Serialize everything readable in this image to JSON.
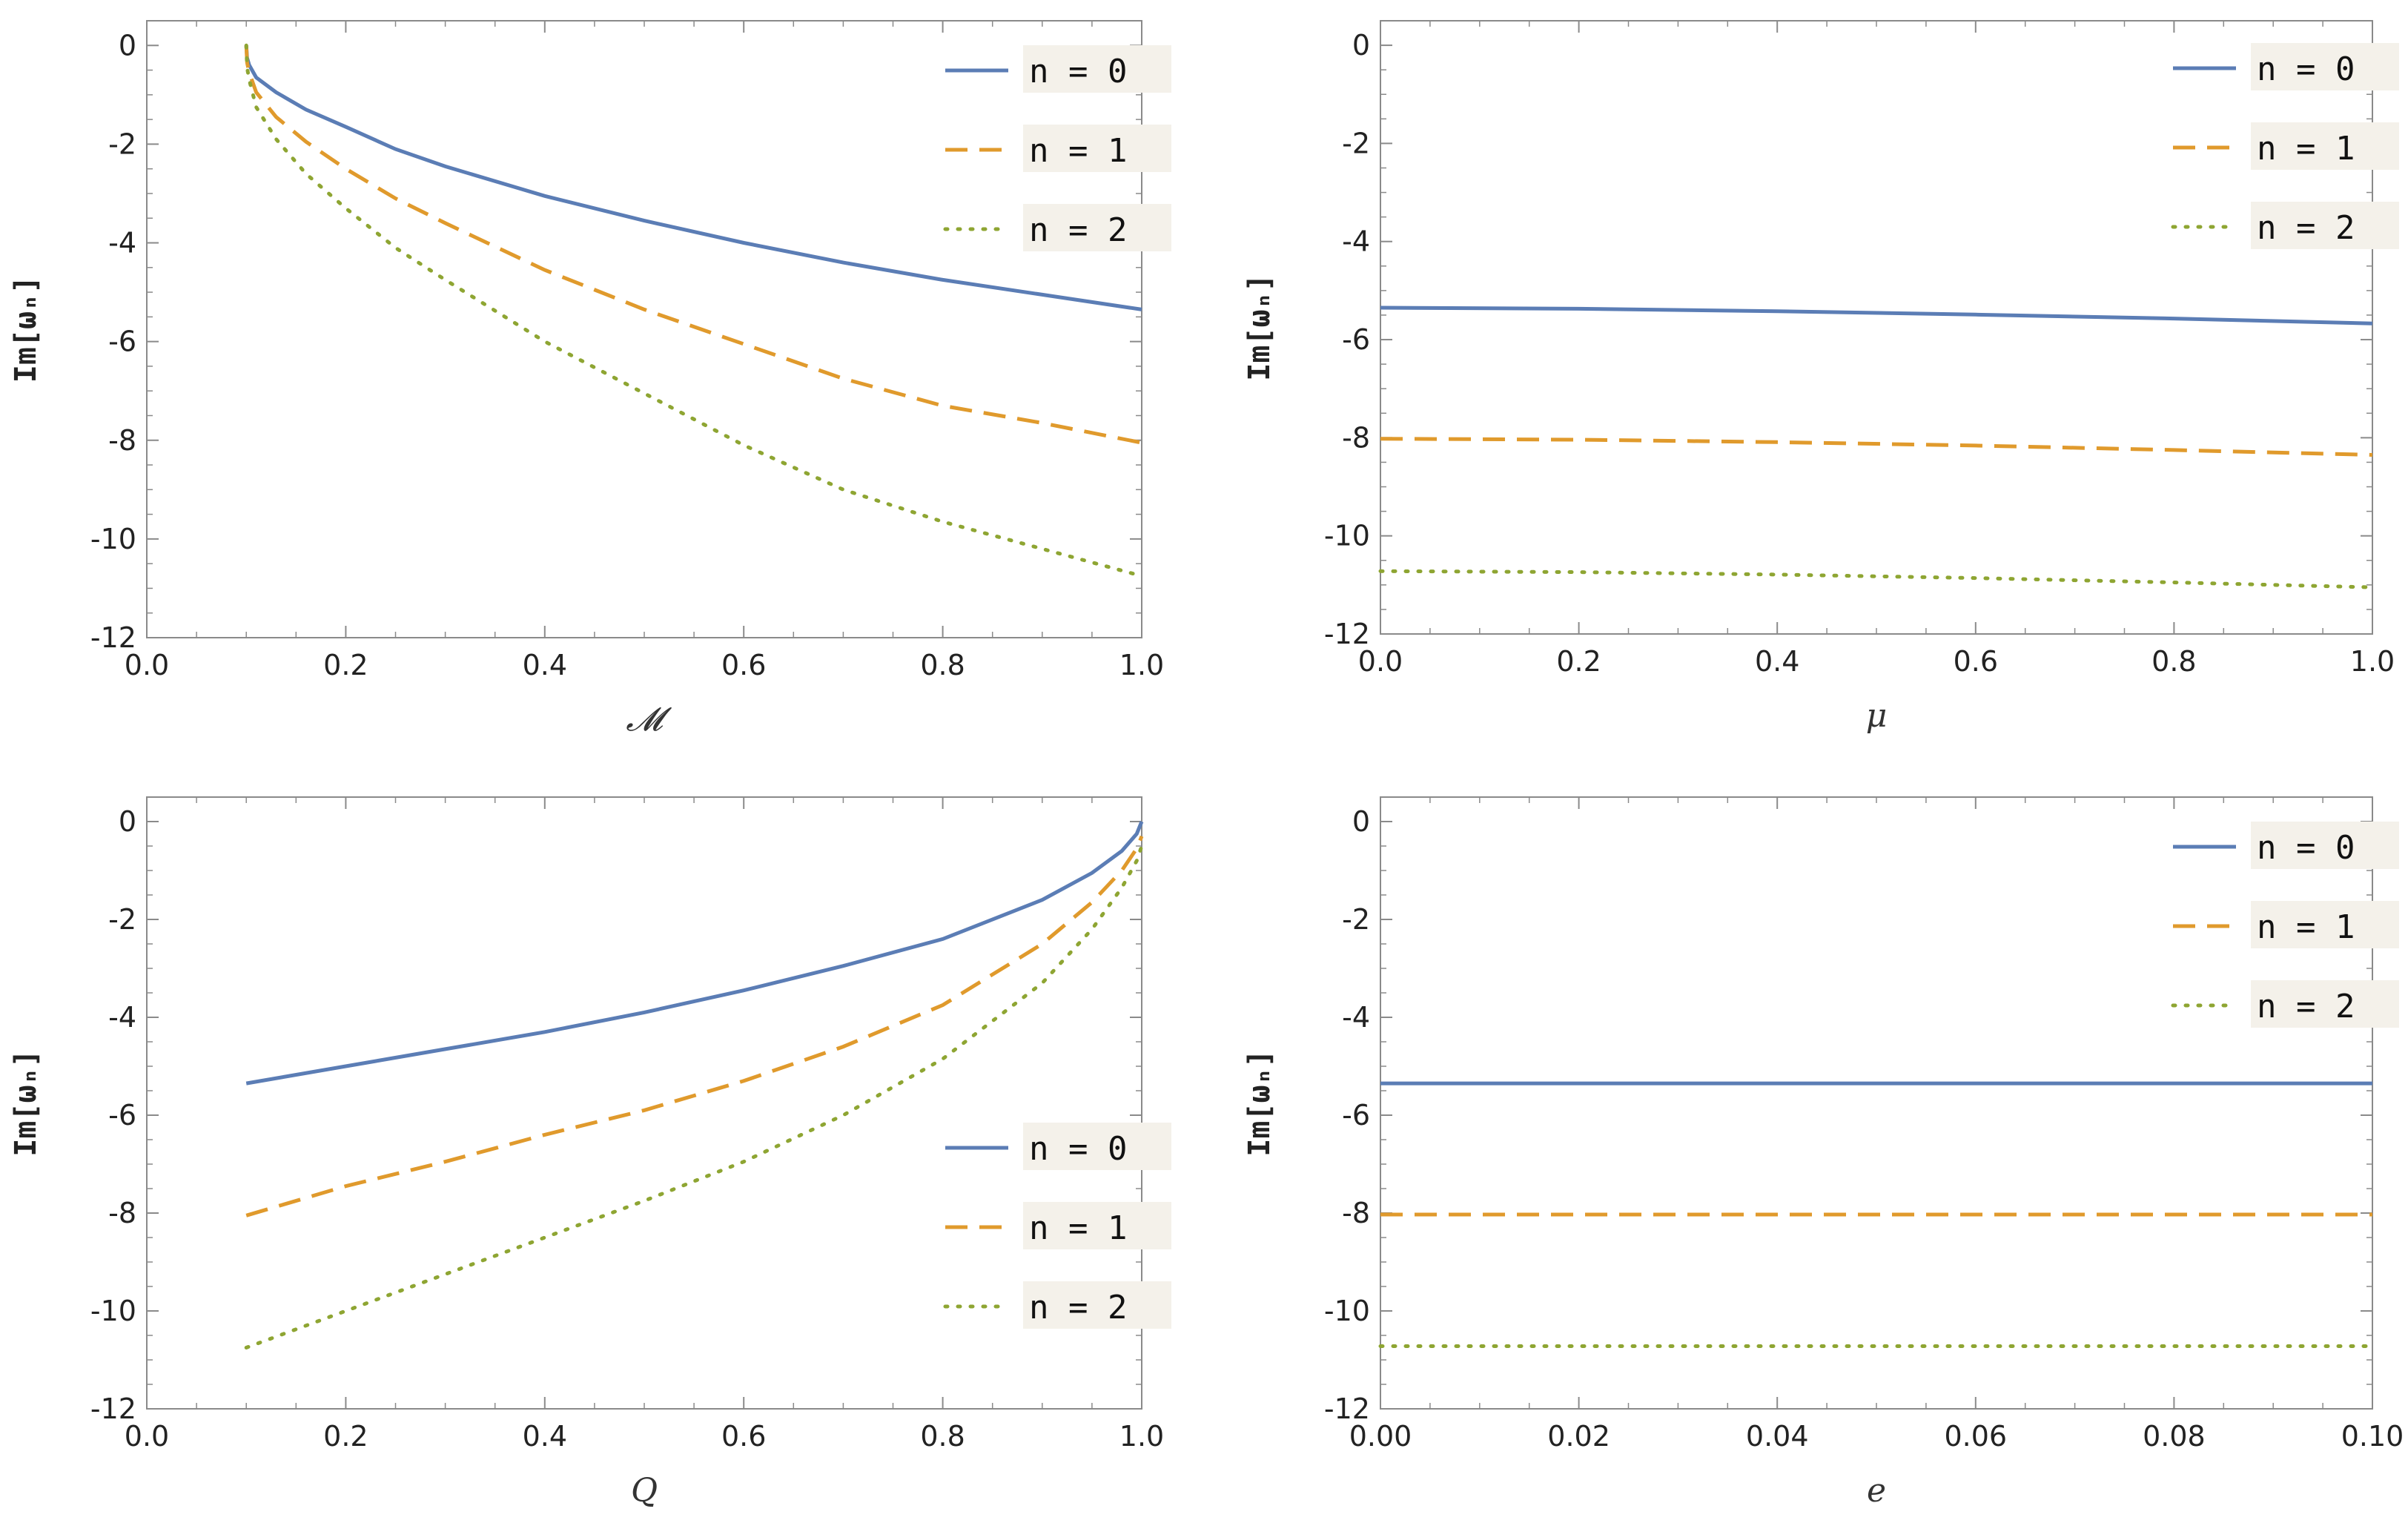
{
  "figure": {
    "colors": {
      "n0": "#5b7db5",
      "n1": "#e09a2c",
      "n2": "#8ea532",
      "frame": "#8a8a8a"
    }
  },
  "chart_data": [
    {
      "type": "line",
      "xlabel": "𝓜",
      "ylabel": "Im[ωₙ]",
      "xlim": [
        0.0,
        1.0
      ],
      "ylim": [
        -12,
        0.5
      ],
      "xticks": [
        "0.0",
        "0.2",
        "0.4",
        "0.6",
        "0.8",
        "1.0"
      ],
      "yticks": [
        "0",
        "-2",
        "-4",
        "-6",
        "-8",
        "-10",
        "-12"
      ],
      "legend_position": "top-right",
      "series": [
        {
          "name": "n = 0",
          "style": "solid",
          "x": [
            0.1,
            0.1008,
            0.103,
            0.11,
            0.13,
            0.16,
            0.2,
            0.25,
            0.3,
            0.4,
            0.5,
            0.6,
            0.7,
            0.8,
            0.9,
            1.0
          ],
          "y": [
            0.0,
            -0.25,
            -0.4,
            -0.65,
            -0.95,
            -1.3,
            -1.65,
            -2.1,
            -2.45,
            -3.05,
            -3.55,
            -4.0,
            -4.4,
            -4.75,
            -5.05,
            -5.35
          ]
        },
        {
          "name": "n = 1",
          "style": "dashed",
          "x": [
            0.1,
            0.1008,
            0.103,
            0.11,
            0.13,
            0.16,
            0.2,
            0.25,
            0.3,
            0.4,
            0.5,
            0.6,
            0.7,
            0.8,
            0.9,
            1.0
          ],
          "y": [
            0.0,
            -0.35,
            -0.55,
            -0.95,
            -1.45,
            -1.95,
            -2.5,
            -3.1,
            -3.6,
            -4.55,
            -5.35,
            -6.05,
            -6.75,
            -7.3,
            -7.65,
            -8.05
          ]
        },
        {
          "name": "n = 2",
          "style": "dotted",
          "x": [
            0.1,
            0.1008,
            0.103,
            0.11,
            0.13,
            0.16,
            0.2,
            0.25,
            0.3,
            0.4,
            0.5,
            0.6,
            0.7,
            0.8,
            0.9,
            1.0
          ],
          "y": [
            0.0,
            -0.45,
            -0.7,
            -1.25,
            -1.9,
            -2.6,
            -3.3,
            -4.1,
            -4.75,
            -6.0,
            -7.05,
            -8.1,
            -9.0,
            -9.65,
            -10.2,
            -10.75
          ]
        }
      ]
    },
    {
      "type": "line",
      "xlabel": "μ",
      "ylabel": "Im[ωₙ]",
      "xlim": [
        0.0,
        1.0
      ],
      "ylim": [
        -12,
        0.5
      ],
      "xticks": [
        "0.0",
        "0.2",
        "0.4",
        "0.6",
        "0.8",
        "1.0"
      ],
      "yticks": [
        "0",
        "-2",
        "-4",
        "-6",
        "-8",
        "-10",
        "-12"
      ],
      "legend_position": "top-right",
      "series": [
        {
          "name": "n = 0",
          "style": "solid",
          "x": [
            0.0,
            0.2,
            0.4,
            0.6,
            0.8,
            1.0
          ],
          "y": [
            -5.35,
            -5.37,
            -5.42,
            -5.49,
            -5.57,
            -5.67
          ]
        },
        {
          "name": "n = 1",
          "style": "dashed",
          "x": [
            0.0,
            0.2,
            0.4,
            0.6,
            0.8,
            1.0
          ],
          "y": [
            -8.02,
            -8.04,
            -8.09,
            -8.16,
            -8.25,
            -8.35
          ]
        },
        {
          "name": "n = 2",
          "style": "dotted",
          "x": [
            0.0,
            0.2,
            0.4,
            0.6,
            0.8,
            1.0
          ],
          "y": [
            -10.72,
            -10.74,
            -10.79,
            -10.86,
            -10.95,
            -11.05
          ]
        }
      ]
    },
    {
      "type": "line",
      "xlabel": "Q",
      "ylabel": "Im[ωₙ]",
      "xlim": [
        0.0,
        1.0
      ],
      "ylim": [
        -12,
        0.5
      ],
      "xticks": [
        "0.0",
        "0.2",
        "0.4",
        "0.6",
        "0.8",
        "1.0"
      ],
      "yticks": [
        "0",
        "-2",
        "-4",
        "-6",
        "-8",
        "-10",
        "-12"
      ],
      "legend_position": "center-right",
      "series": [
        {
          "name": "n = 0",
          "style": "solid",
          "x": [
            0.1,
            0.2,
            0.3,
            0.4,
            0.5,
            0.6,
            0.7,
            0.8,
            0.9,
            0.95,
            0.98,
            0.995,
            1.0
          ],
          "y": [
            -5.35,
            -5.0,
            -4.65,
            -4.3,
            -3.9,
            -3.45,
            -2.95,
            -2.4,
            -1.6,
            -1.05,
            -0.6,
            -0.25,
            0.0
          ]
        },
        {
          "name": "n = 1",
          "style": "dashed",
          "x": [
            0.1,
            0.2,
            0.3,
            0.4,
            0.5,
            0.6,
            0.7,
            0.8,
            0.9,
            0.95,
            0.98,
            0.995,
            1.0
          ],
          "y": [
            -8.05,
            -7.45,
            -6.95,
            -6.4,
            -5.9,
            -5.3,
            -4.6,
            -3.75,
            -2.5,
            -1.65,
            -1.0,
            -0.55,
            -0.3
          ]
        },
        {
          "name": "n = 2",
          "style": "dotted",
          "x": [
            0.1,
            0.2,
            0.3,
            0.4,
            0.5,
            0.6,
            0.7,
            0.8,
            0.9,
            0.95,
            0.98,
            0.995,
            1.0
          ],
          "y": [
            -10.75,
            -10.0,
            -9.25,
            -8.5,
            -7.75,
            -6.95,
            -6.0,
            -4.85,
            -3.3,
            -2.2,
            -1.35,
            -0.8,
            -0.5
          ]
        }
      ]
    },
    {
      "type": "line",
      "xlabel": "e",
      "ylabel": "Im[ωₙ]",
      "xlim": [
        0.0,
        0.1
      ],
      "ylim": [
        -12,
        0.5
      ],
      "xticks": [
        "0.00",
        "0.02",
        "0.04",
        "0.06",
        "0.08",
        "0.10"
      ],
      "yticks": [
        "0",
        "-2",
        "-4",
        "-6",
        "-8",
        "-10",
        "-12"
      ],
      "legend_position": "top-right",
      "series": [
        {
          "name": "n = 0",
          "style": "solid",
          "x": [
            0.0,
            0.1
          ],
          "y": [
            -5.35,
            -5.35
          ]
        },
        {
          "name": "n = 1",
          "style": "dashed",
          "x": [
            0.0,
            0.1
          ],
          "y": [
            -8.03,
            -8.03
          ]
        },
        {
          "name": "n = 2",
          "style": "dotted",
          "x": [
            0.0,
            0.1
          ],
          "y": [
            -10.72,
            -10.72
          ]
        }
      ]
    }
  ]
}
